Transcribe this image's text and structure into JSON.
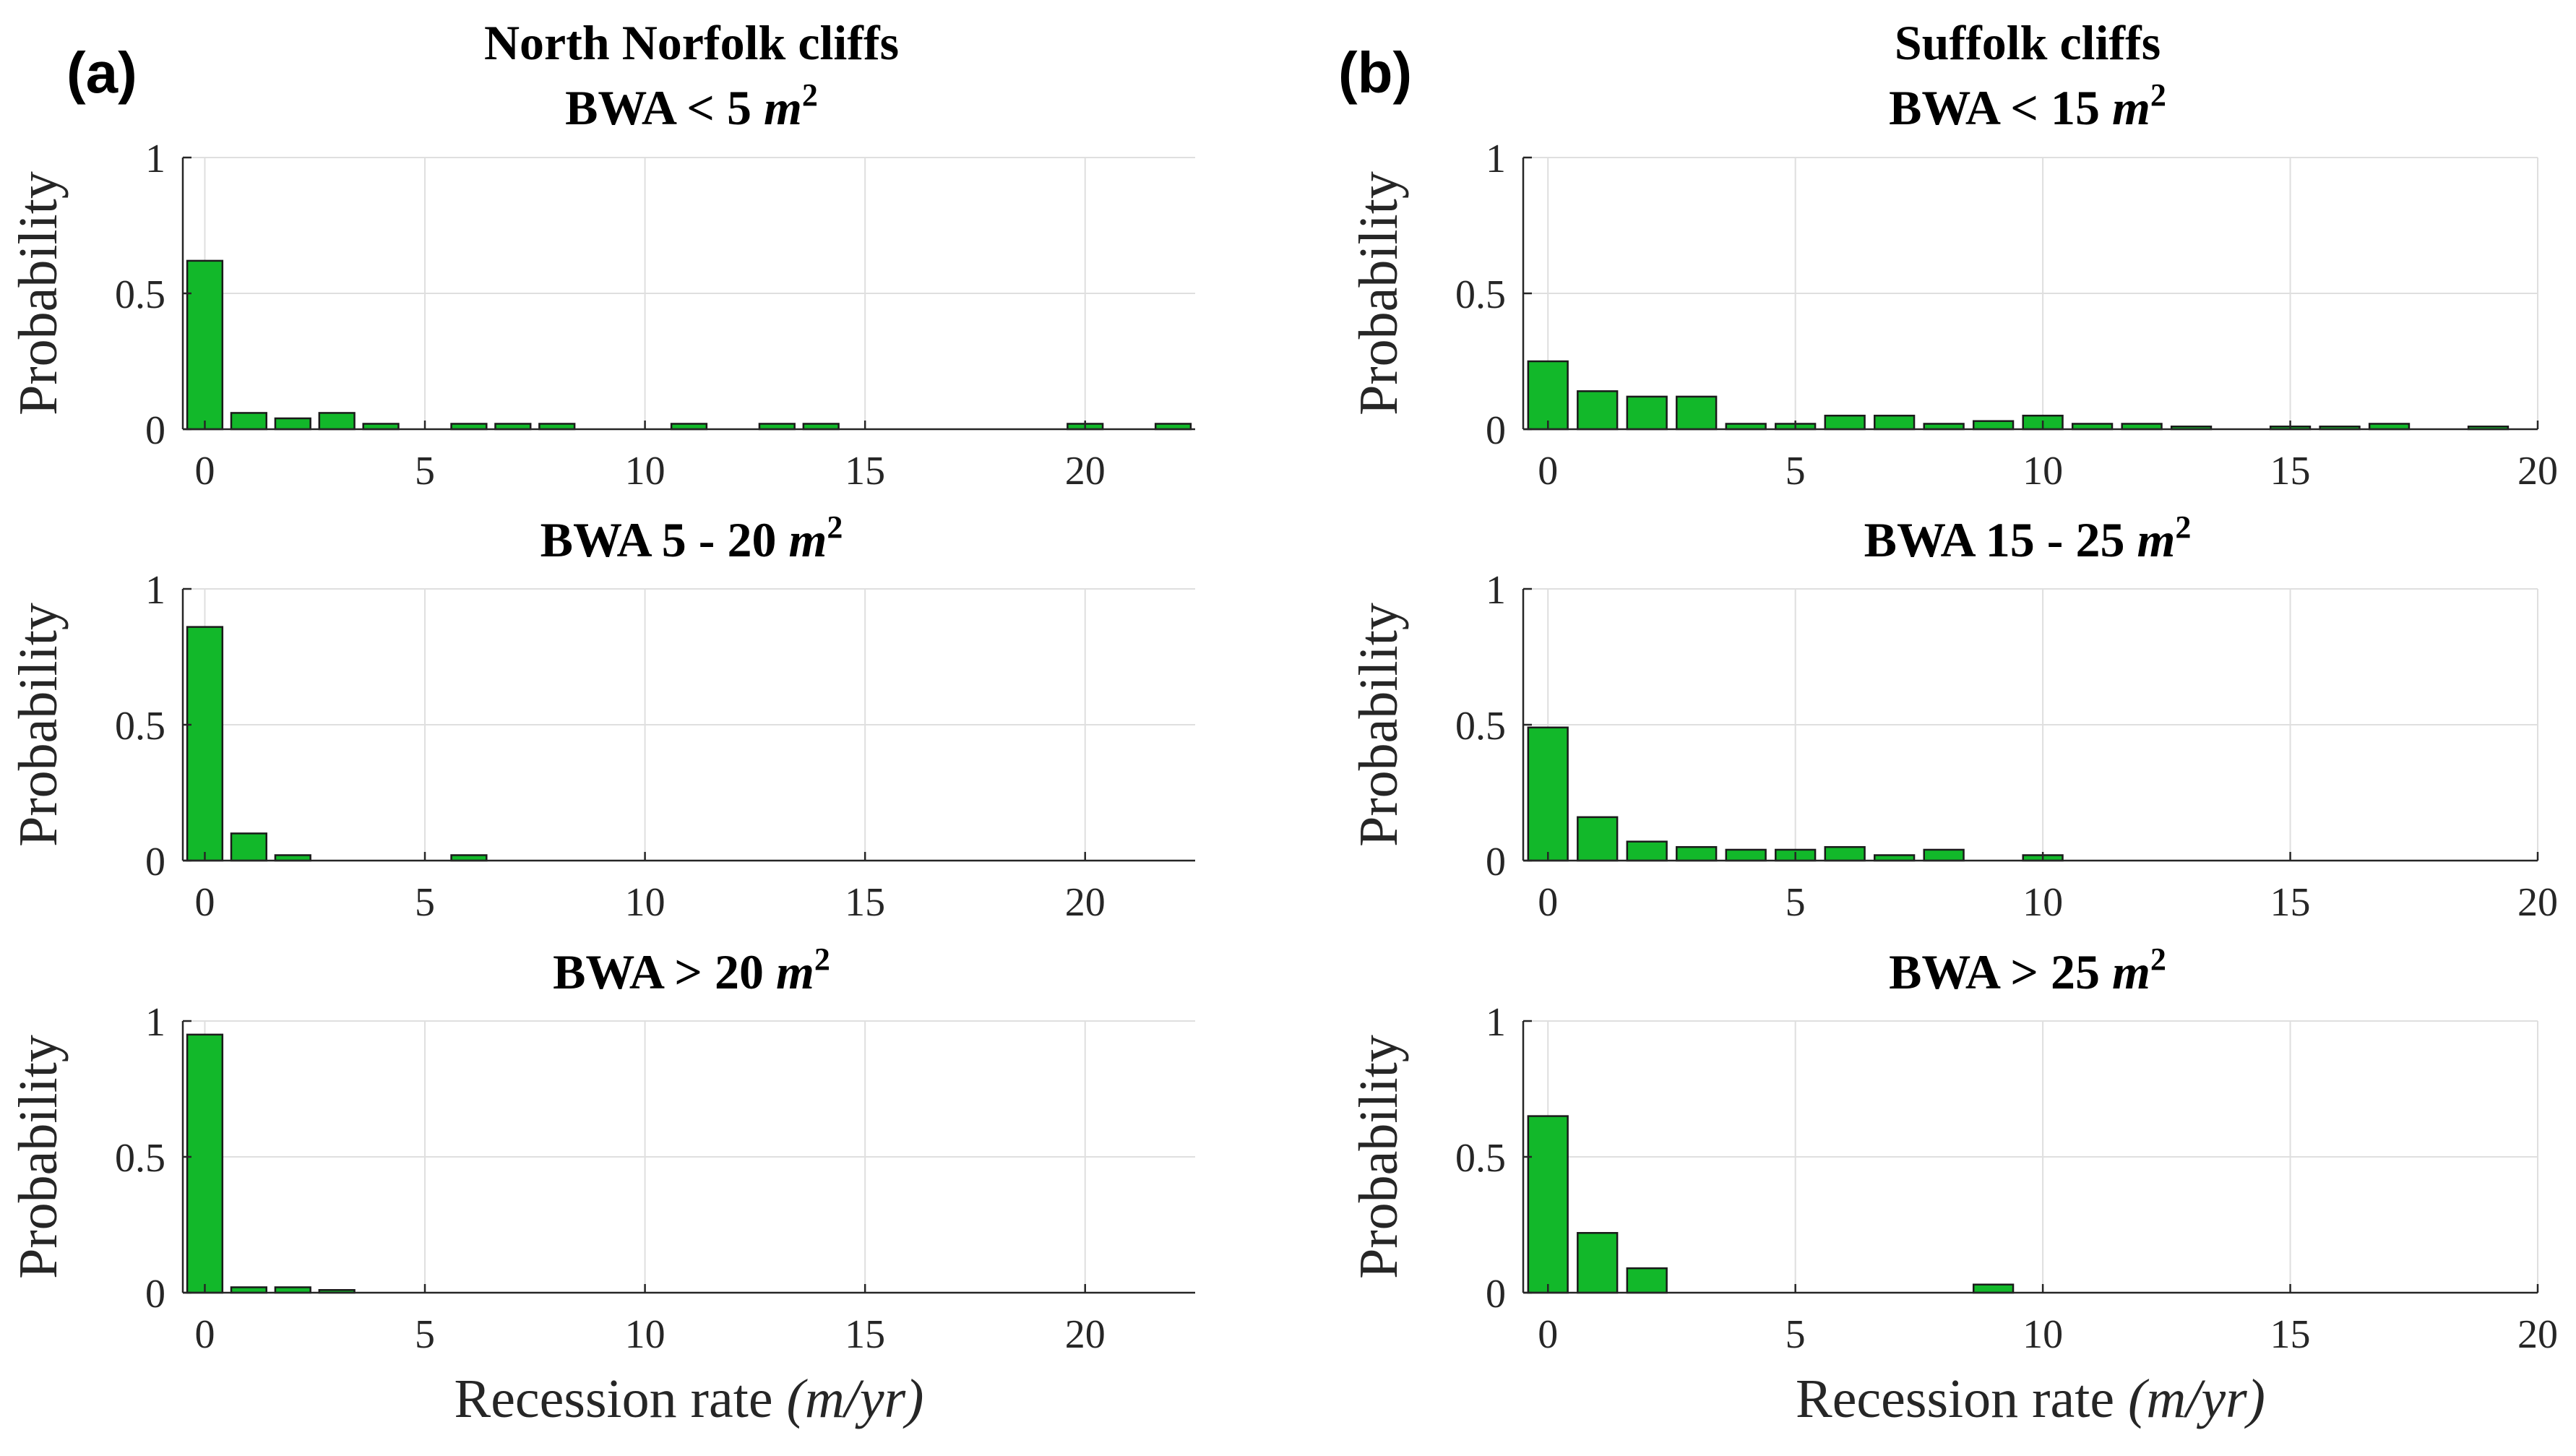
{
  "colors": {
    "bar_fill": "#12b82a",
    "bar_edge": "#1a1a1a",
    "text": "#000000",
    "axis": "#262626",
    "grid": "#dfdfdf"
  },
  "panels": [
    {
      "letter": "(a)",
      "title": "North Norfolk cliffs"
    },
    {
      "letter": "(b)",
      "title": "Suffolk cliffs"
    }
  ],
  "chart_data": [
    {
      "type": "bar",
      "panel": "a",
      "title": "BWA < 5 m²",
      "title_parts": {
        "prefix": "BWA",
        "op": "<",
        "num": "5",
        "unit": "m",
        "exp": "2"
      },
      "xlabel": "",
      "ylabel": "Probability",
      "xlim": [
        -0.5,
        22.5
      ],
      "ylim": [
        0,
        1
      ],
      "xticks": [
        0,
        5,
        10,
        15,
        20
      ],
      "yticks": [
        0,
        0.5,
        1
      ],
      "ytick_labels": [
        "0",
        "0.5",
        "1"
      ],
      "x": [
        0,
        1,
        2,
        3,
        4,
        6,
        7,
        8,
        11,
        13,
        14,
        20,
        22
      ],
      "values": [
        0.62,
        0.06,
        0.04,
        0.06,
        0.02,
        0.02,
        0.02,
        0.02,
        0.02,
        0.02,
        0.02,
        0.02,
        0.02
      ]
    },
    {
      "type": "bar",
      "panel": "a",
      "title": "BWA 5 - 20 m²",
      "title_parts": {
        "prefix": "BWA",
        "op": "",
        "num": "5 - 20",
        "unit": "m",
        "exp": "2"
      },
      "xlabel": "",
      "ylabel": "Probability",
      "xlim": [
        -0.5,
        22.5
      ],
      "ylim": [
        0,
        1
      ],
      "xticks": [
        0,
        5,
        10,
        15,
        20
      ],
      "yticks": [
        0,
        0.5,
        1
      ],
      "ytick_labels": [
        "0",
        "0.5",
        "1"
      ],
      "x": [
        0,
        1,
        2,
        6
      ],
      "values": [
        0.86,
        0.1,
        0.02,
        0.02
      ]
    },
    {
      "type": "bar",
      "panel": "a",
      "title": "BWA > 20 m²",
      "title_parts": {
        "prefix": "BWA",
        "op": ">",
        "num": "20",
        "unit": "m",
        "exp": "2"
      },
      "xlabel": "Recession rate (m/yr)",
      "xlabel_parts": {
        "text": "Recession rate",
        "unit": "(m/yr)"
      },
      "ylabel": "Probability",
      "xlim": [
        -0.5,
        22.5
      ],
      "ylim": [
        0,
        1
      ],
      "xticks": [
        0,
        5,
        10,
        15,
        20
      ],
      "yticks": [
        0,
        0.5,
        1
      ],
      "ytick_labels": [
        "0",
        "0.5",
        "1"
      ],
      "x": [
        0,
        1,
        2,
        3
      ],
      "values": [
        0.95,
        0.02,
        0.02,
        0.01
      ]
    },
    {
      "type": "bar",
      "panel": "b",
      "title": "BWA < 15 m²",
      "title_parts": {
        "prefix": "BWA",
        "op": "<",
        "num": "15",
        "unit": "m",
        "exp": "2"
      },
      "xlabel": "",
      "ylabel": "Probability",
      "xlim": [
        -0.5,
        20
      ],
      "ylim": [
        0,
        1
      ],
      "xticks": [
        0,
        5,
        10,
        15,
        20
      ],
      "yticks": [
        0,
        0.5,
        1
      ],
      "ytick_labels": [
        "0",
        "0.5",
        "1"
      ],
      "x": [
        0,
        1,
        2,
        3,
        4,
        5,
        6,
        7,
        8,
        9,
        10,
        11,
        12,
        13,
        15,
        16,
        17,
        19
      ],
      "values": [
        0.25,
        0.14,
        0.12,
        0.12,
        0.02,
        0.02,
        0.05,
        0.05,
        0.02,
        0.03,
        0.05,
        0.02,
        0.02,
        0.01,
        0.01,
        0.01,
        0.02,
        0.01
      ]
    },
    {
      "type": "bar",
      "panel": "b",
      "title": "BWA 15 - 25 m²",
      "title_parts": {
        "prefix": "BWA",
        "op": "",
        "num": "15 - 25",
        "unit": "m",
        "exp": "2"
      },
      "xlabel": "",
      "ylabel": "Probability",
      "xlim": [
        -0.5,
        20
      ],
      "ylim": [
        0,
        1
      ],
      "xticks": [
        0,
        5,
        10,
        15,
        20
      ],
      "yticks": [
        0,
        0.5,
        1
      ],
      "ytick_labels": [
        "0",
        "0.5",
        "1"
      ],
      "x": [
        0,
        1,
        2,
        3,
        4,
        5,
        6,
        7,
        8,
        10
      ],
      "values": [
        0.49,
        0.16,
        0.07,
        0.05,
        0.04,
        0.04,
        0.05,
        0.02,
        0.04,
        0.02
      ]
    },
    {
      "type": "bar",
      "panel": "b",
      "title": "BWA > 25 m²",
      "title_parts": {
        "prefix": "BWA",
        "op": ">",
        "num": "25",
        "unit": "m",
        "exp": "2"
      },
      "xlabel": "Recession rate (m/yr)",
      "xlabel_parts": {
        "text": "Recession rate",
        "unit": "(m/yr)"
      },
      "ylabel": "Probability",
      "xlim": [
        -0.5,
        20
      ],
      "ylim": [
        0,
        1
      ],
      "xticks": [
        0,
        5,
        10,
        15,
        20
      ],
      "yticks": [
        0,
        0.5,
        1
      ],
      "ytick_labels": [
        "0",
        "0.5",
        "1"
      ],
      "x": [
        0,
        1,
        2,
        9
      ],
      "values": [
        0.65,
        0.22,
        0.09,
        0.03
      ]
    }
  ]
}
